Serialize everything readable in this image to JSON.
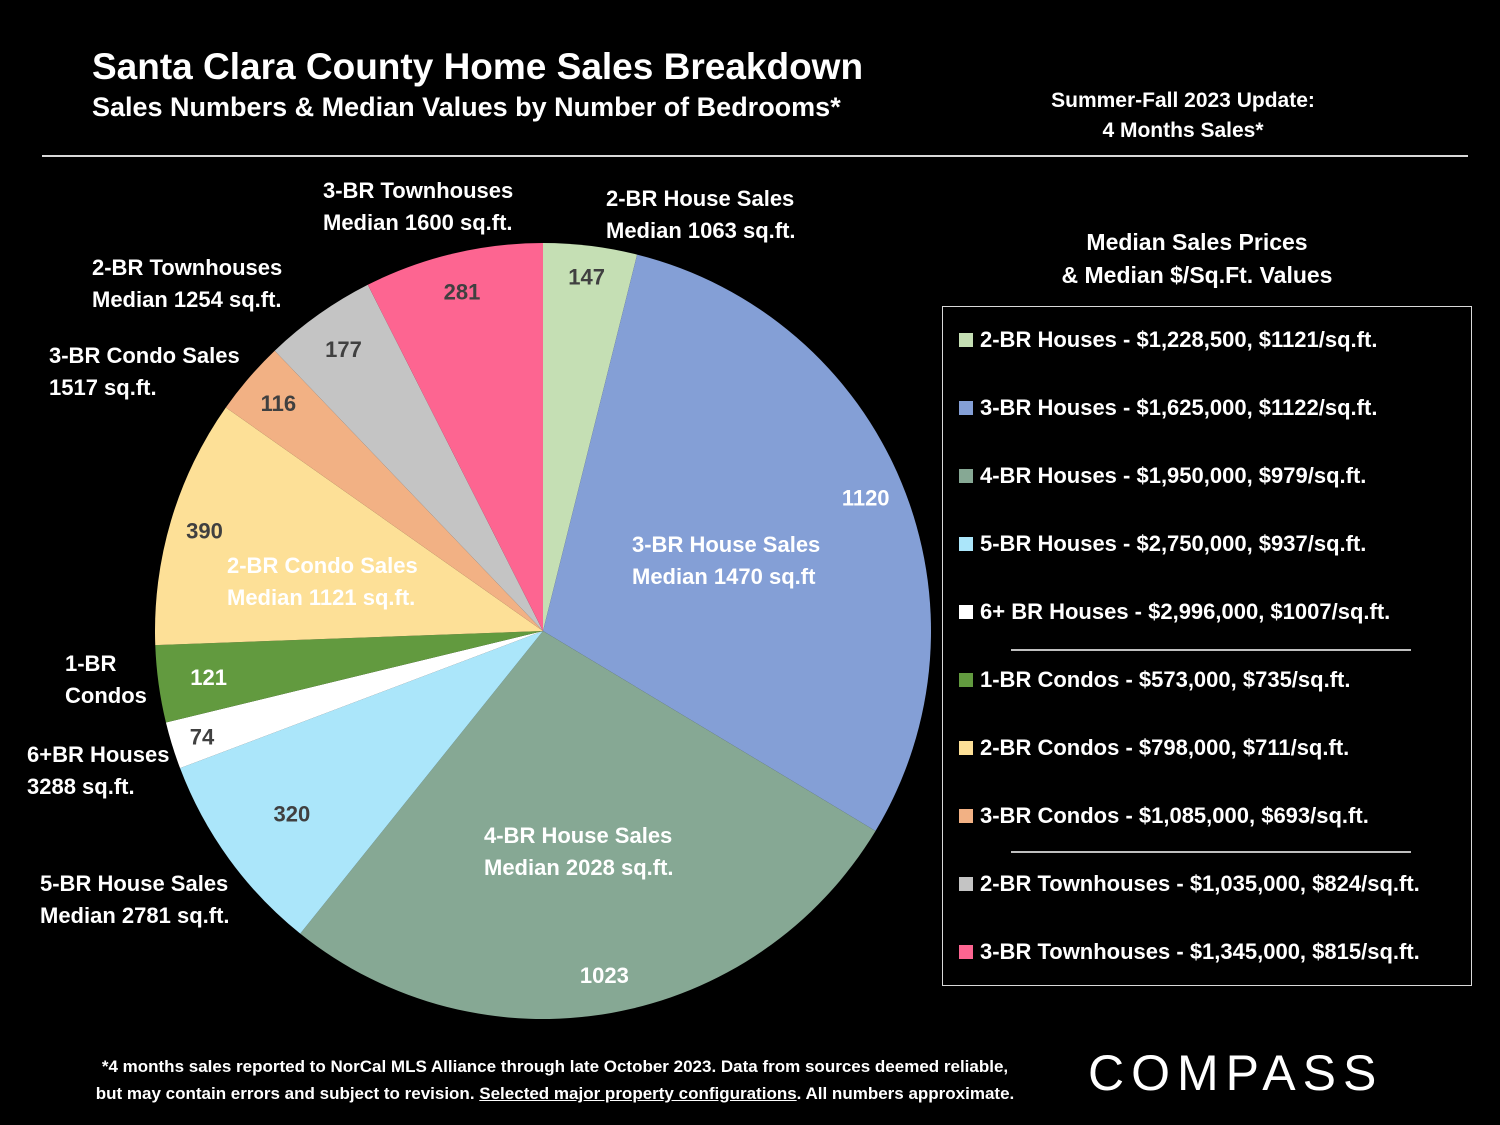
{
  "header": {
    "title": "Santa Clara County Home Sales Breakdown",
    "subtitle": "Sales Numbers & Median Values by Number of Bedrooms*",
    "update_line1": "Summer-Fall 2023 Update:",
    "update_line2": "4 Months Sales*"
  },
  "chart_data": {
    "type": "pie",
    "title": "Santa Clara County Home Sales Breakdown",
    "subtitle": "Sales Numbers & Median Values by Number of Bedrooms*",
    "slices": [
      {
        "key": "2br-house",
        "value": 147,
        "color": "#c5dfb4",
        "value_color": "#404040",
        "label": [
          "2-BR House Sales",
          "Median 1063 sq.ft."
        ]
      },
      {
        "key": "3br-house",
        "value": 1120,
        "color": "#849fd6",
        "value_color": "#ffffff",
        "label": [
          "3-BR House Sales",
          "Median 1470 sq.ft"
        ]
      },
      {
        "key": "4br-house",
        "value": 1023,
        "color": "#86a894",
        "value_color": "#ffffff",
        "label": [
          "4-BR House Sales",
          "Median 2028 sq.ft."
        ]
      },
      {
        "key": "5br-house",
        "value": 320,
        "color": "#abe6fa",
        "value_color": "#404040",
        "label": [
          "5-BR House Sales",
          "Median 2781 sq.ft."
        ]
      },
      {
        "key": "6br-house",
        "value": 74,
        "color": "#ffffff",
        "value_color": "#404040",
        "label": [
          "6+BR Houses",
          "3288 sq.ft."
        ]
      },
      {
        "key": "1br-condo",
        "value": 121,
        "color": "#629a3f",
        "value_color": "#ffffff",
        "label": [
          "1-BR",
          "Condos"
        ]
      },
      {
        "key": "2br-condo",
        "value": 390,
        "color": "#fde097",
        "value_color": "#404040",
        "label": [
          "2-BR Condo Sales",
          "Median 1121 sq.ft."
        ]
      },
      {
        "key": "3br-condo",
        "value": 116,
        "color": "#f2b184",
        "value_color": "#404040",
        "label": [
          "3-BR Condo Sales",
          "1517 sq.ft."
        ]
      },
      {
        "key": "2br-townhouse",
        "value": 177,
        "color": "#c4c4c4",
        "value_color": "#404040",
        "label": [
          "2-BR Townhouses",
          "Median 1254 sq.ft."
        ]
      },
      {
        "key": "3br-townhouse",
        "value": 281,
        "color": "#fd6591",
        "value_color": "#404040",
        "label": [
          "3-BR Townhouses",
          "Median 1600 sq.ft."
        ]
      }
    ]
  },
  "legend": {
    "heading_line1": "Median Sales Prices",
    "heading_line2": "& Median $/Sq.Ft. Values",
    "items": [
      {
        "text": "2-BR Houses - $1,228,500, $1121/sq.ft.",
        "color": "#c5dfb4"
      },
      {
        "text": "3-BR Houses - $1,625,000, $1122/sq.ft.",
        "color": "#849fd6"
      },
      {
        "text": "4-BR Houses - $1,950,000, $979/sq.ft.",
        "color": "#86a894"
      },
      {
        "text": "5-BR Houses - $2,750,000, $937/sq.ft.",
        "color": "#abe6fa"
      },
      {
        "text": "6+ BR Houses - $2,996,000, $1007/sq.ft.",
        "color": "#ffffff"
      },
      {
        "text": "1-BR Condos - $573,000, $735/sq.ft.",
        "color": "#629a3f"
      },
      {
        "text": "2-BR Condos - $798,000, $711/sq.ft.",
        "color": "#fde097"
      },
      {
        "text": "3-BR Condos - $1,085,000, $693/sq.ft.",
        "color": "#f2b184"
      },
      {
        "text": "2-BR Townhouses - $1,035,000, $824/sq.ft.",
        "color": "#c4c4c4"
      },
      {
        "text": "3-BR Townhouses - $1,345,000, $815/sq.ft.",
        "color": "#fd6591"
      }
    ]
  },
  "footnote": {
    "line1": "*4 months sales reported to NorCal MLS Alliance through late October 2023. Data from sources deemed reliable,",
    "line2_pre": "but may contain errors and subject to revision. ",
    "line2_link": "Selected major property configurations",
    "line2_post": ". All numbers approximate."
  },
  "brand": {
    "logo_text": "COMPASS"
  }
}
